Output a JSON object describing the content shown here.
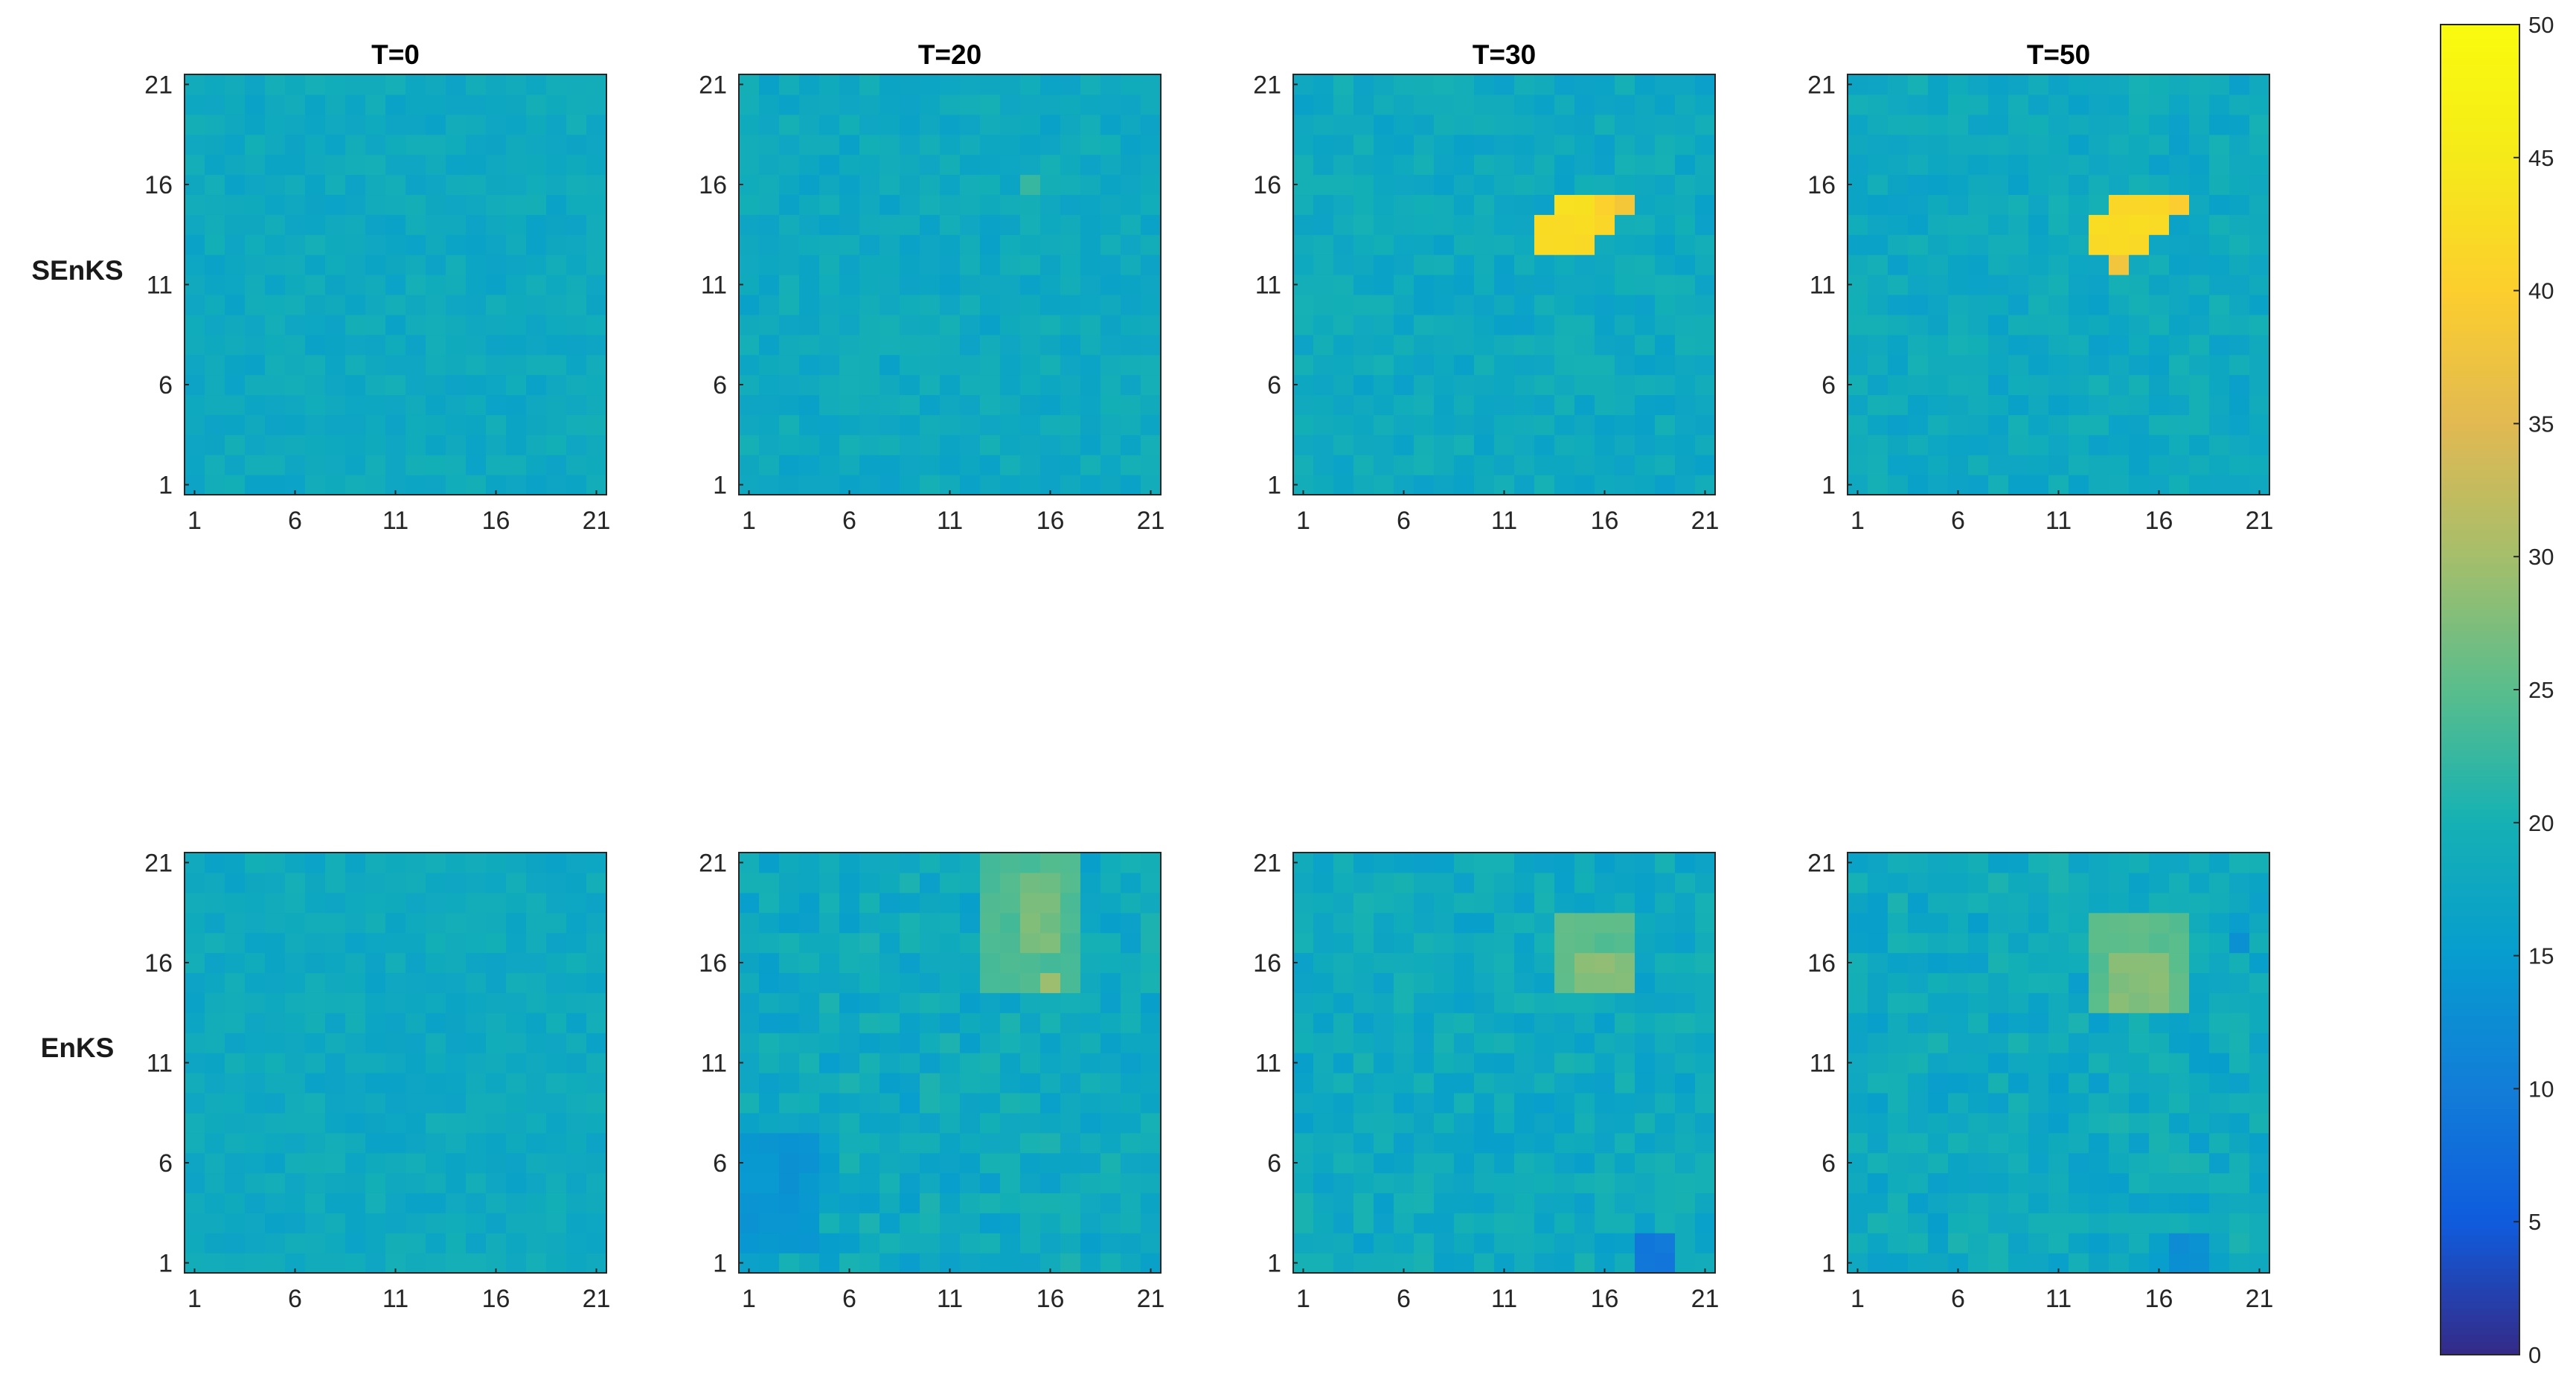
{
  "chart_data": {
    "type": "heatmap",
    "columns": [
      "T=0",
      "T=20",
      "T=30",
      "T=50"
    ],
    "rows": [
      "SEnKS",
      "EnKS"
    ],
    "grid_size": 21,
    "x_ticks": [
      "1",
      "6",
      "11",
      "16",
      "21"
    ],
    "y_ticks": [
      "1",
      "6",
      "11",
      "16",
      "21"
    ],
    "xlim": [
      1,
      21
    ],
    "ylim": [
      1,
      21
    ],
    "colorbar": {
      "min": 0,
      "max": 50,
      "ticks": [
        "0",
        "5",
        "10",
        "15",
        "20",
        "25",
        "30",
        "35",
        "40",
        "45",
        "50"
      ],
      "colormap": "parula"
    },
    "background_value": 18,
    "panels": [
      {
        "row": "SEnKS",
        "column": "T=0",
        "spread": 1.6,
        "features": []
      },
      {
        "row": "SEnKS",
        "column": "T=20",
        "spread": 1.8,
        "features": [
          {
            "x": 15,
            "y": 16,
            "value": 22
          }
        ]
      },
      {
        "row": "SEnKS",
        "column": "T=30",
        "spread": 2.0,
        "features": [
          {
            "x_range": [
              14,
              15
            ],
            "y_range": [
              14,
              15
            ],
            "value": 43
          },
          {
            "x": 16,
            "y": 15,
            "value": 41
          },
          {
            "x": 17,
            "y": 15,
            "value": 39
          },
          {
            "x_range": [
              13,
              14
            ],
            "y_range": [
              13,
              14
            ],
            "value": 42
          },
          {
            "x": 15,
            "y": 14,
            "value": 43
          },
          {
            "x": 16,
            "y": 14,
            "value": 42
          },
          {
            "x": 15,
            "y": 13,
            "value": 42
          }
        ]
      },
      {
        "row": "SEnKS",
        "column": "T=50",
        "spread": 2.0,
        "features": [
          {
            "x_range": [
              14,
              16
            ],
            "y_range": [
              14,
              15
            ],
            "value": 42
          },
          {
            "x": 17,
            "y": 15,
            "value": 40
          },
          {
            "x_range": [
              13,
              14
            ],
            "y_range": [
              13,
              14
            ],
            "value": 42
          },
          {
            "x": 15,
            "y": 13,
            "value": 42
          },
          {
            "x": 14,
            "y": 12,
            "value": 38
          }
        ]
      },
      {
        "row": "EnKS",
        "column": "T=0",
        "spread": 1.6,
        "features": []
      },
      {
        "row": "EnKS",
        "column": "T=20",
        "spread": 2.6,
        "features": [
          {
            "x_range": [
              13,
              17
            ],
            "y_range": [
              15,
              21
            ],
            "value": 24
          },
          {
            "x_range": [
              15,
              16
            ],
            "y_range": [
              17,
              20
            ],
            "value": 27
          },
          {
            "x": 16,
            "y": 15,
            "value": 29
          },
          {
            "x_range": [
              1,
              4
            ],
            "y_range": [
              2,
              7
            ],
            "value": 14
          }
        ]
      },
      {
        "row": "EnKS",
        "column": "T=30",
        "spread": 2.4,
        "features": [
          {
            "x_range": [
              14,
              17
            ],
            "y_range": [
              15,
              18
            ],
            "value": 25
          },
          {
            "x_range": [
              15,
              17
            ],
            "y_range": [
              15,
              16
            ],
            "value": 28
          },
          {
            "x_range": [
              18,
              19
            ],
            "y_range": [
              1,
              2
            ],
            "value": 9
          }
        ]
      },
      {
        "row": "EnKS",
        "column": "T=50",
        "spread": 2.5,
        "features": [
          {
            "x_range": [
              13,
              17
            ],
            "y_range": [
              14,
              18
            ],
            "value": 25
          },
          {
            "x_range": [
              14,
              16
            ],
            "y_range": [
              14,
              16
            ],
            "value": 28
          },
          {
            "x": 20,
            "y": 17,
            "value": 13
          },
          {
            "x_range": [
              17,
              18
            ],
            "y_range": [
              1,
              2
            ],
            "value": 13
          }
        ]
      }
    ]
  }
}
